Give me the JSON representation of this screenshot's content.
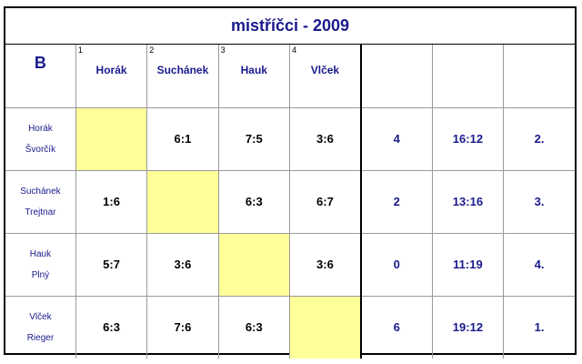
{
  "title": "mistříčci - 2009",
  "group": "B",
  "columns": [
    {
      "num": "1",
      "name": "Horák"
    },
    {
      "num": "2",
      "name": "Suchánek"
    },
    {
      "num": "3",
      "name": "Hauk"
    },
    {
      "num": "4",
      "name": "Vlček"
    }
  ],
  "rows": [
    {
      "name1": "Horák",
      "name2": "Švorčík",
      "scores": [
        "",
        "6:1",
        "7:5",
        "3:6"
      ],
      "points": "4",
      "games": "16:12",
      "rank": "2."
    },
    {
      "name1": "Suchánek",
      "name2": "Trejtnar",
      "scores": [
        "1:6",
        "",
        "6:3",
        "6:7"
      ],
      "points": "2",
      "games": "13:16",
      "rank": "3."
    },
    {
      "name1": "Hauk",
      "name2": "Plný",
      "scores": [
        "5:7",
        "3:6",
        "",
        "3:6"
      ],
      "points": "0",
      "games": "11:19",
      "rank": "4."
    },
    {
      "name1": "Vlček",
      "name2": "Rieger",
      "scores": [
        "6:3",
        "7:6",
        "6:3",
        ""
      ],
      "points": "6",
      "games": "19:12",
      "rank": "1."
    }
  ],
  "colors": {
    "accent": "#1a1a8c",
    "diagonal": "#ffff99"
  }
}
